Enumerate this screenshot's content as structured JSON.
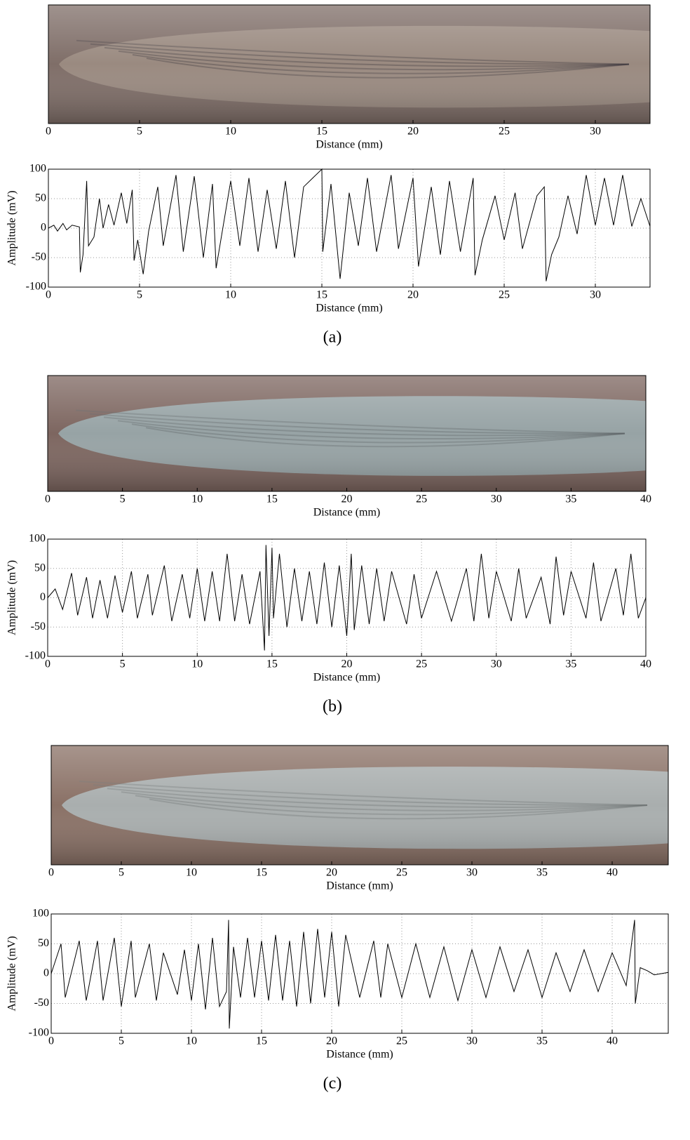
{
  "chart_data": [
    {
      "type": "image",
      "xlabel": "Distance (mm)",
      "xlim": [
        0,
        33
      ],
      "xticks": [
        0,
        5,
        10,
        15,
        20,
        25,
        30
      ],
      "colors": [
        "#7f6e68",
        "#9a8a80",
        "#3f3a3e"
      ]
    },
    {
      "type": "line",
      "xlabel": "Distance (mm)",
      "ylabel": "Amplitude (mV)",
      "caption": "(a)",
      "xlim": [
        0,
        33
      ],
      "ylim": [
        -100,
        100
      ],
      "xticks": [
        0,
        5,
        10,
        15,
        20,
        25,
        30
      ],
      "yticks": [
        -100,
        -50,
        0,
        50,
        100
      ],
      "grid": true,
      "color": "#000000",
      "x": [
        0,
        0.3,
        0.5,
        0.8,
        1.0,
        1.3,
        1.7,
        1.75,
        1.9,
        2.1,
        2.2,
        2.5,
        2.8,
        3.0,
        3.3,
        3.6,
        4.0,
        4.3,
        4.6,
        4.7,
        4.9,
        5.2,
        5.5,
        6.0,
        6.3,
        7.0,
        7.4,
        8.0,
        8.5,
        9.0,
        9.2,
        10,
        10.5,
        11,
        11.5,
        12,
        12.5,
        13,
        13.5,
        14,
        15,
        15.05,
        15.5,
        16,
        16.5,
        17,
        17.5,
        18,
        18.8,
        19.2,
        20,
        20.3,
        21,
        21.5,
        22,
        22.6,
        23.3,
        23.4,
        23.8,
        24.5,
        25,
        25.6,
        26,
        26.8,
        27.2,
        27.3,
        27.6,
        28,
        28.5,
        29,
        29.5,
        30,
        30.5,
        31,
        31.5,
        32,
        32.5,
        33
      ],
      "values": [
        0,
        5,
        -5,
        8,
        -3,
        5,
        2,
        -75,
        -45,
        80,
        -30,
        -15,
        50,
        0,
        40,
        5,
        60,
        8,
        65,
        -55,
        -20,
        -78,
        -5,
        70,
        -30,
        90,
        -40,
        88,
        -50,
        75,
        -68,
        80,
        -30,
        85,
        -40,
        65,
        -35,
        80,
        -50,
        70,
        100,
        -40,
        75,
        -86,
        60,
        -30,
        85,
        -40,
        90,
        -35,
        85,
        -65,
        70,
        -45,
        80,
        -40,
        85,
        -80,
        -20,
        55,
        -20,
        60,
        -35,
        55,
        70,
        -90,
        -45,
        -15,
        55,
        -10,
        90,
        5,
        85,
        5,
        90,
        3,
        50,
        3
      ]
    },
    {
      "type": "image",
      "xlabel": "Distance (mm)",
      "xlim": [
        0,
        40
      ],
      "xticks": [
        0,
        5,
        10,
        15,
        20,
        25,
        30,
        35,
        40
      ],
      "colors": [
        "#7d6660",
        "#97a3a5",
        "#5f6466"
      ]
    },
    {
      "type": "line",
      "xlabel": "Distance (mm)",
      "ylabel": "Amplitude (mV)",
      "caption": "(b)",
      "xlim": [
        0,
        40
      ],
      "ylim": [
        -100,
        100
      ],
      "xticks": [
        0,
        5,
        10,
        15,
        20,
        25,
        30,
        35,
        40
      ],
      "yticks": [
        -100,
        -50,
        0,
        50,
        100
      ],
      "grid": true,
      "color": "#000000",
      "x": [
        0,
        0.5,
        1,
        1.6,
        2,
        2.6,
        3,
        3.5,
        4,
        4.5,
        5,
        5.6,
        6,
        6.7,
        7,
        7.8,
        8.3,
        9,
        9.5,
        10,
        10.5,
        11,
        11.5,
        12,
        12.5,
        13,
        13.5,
        14.2,
        14.5,
        14.6,
        14.8,
        15,
        15.1,
        15.5,
        16,
        16.5,
        17,
        17.5,
        18,
        18.5,
        19,
        19.5,
        20,
        20.3,
        20.5,
        21,
        21.5,
        22,
        22.5,
        23,
        24,
        24.5,
        25,
        26,
        27,
        28,
        28.5,
        29,
        29.5,
        30,
        31,
        31.5,
        32,
        33,
        33.6,
        34,
        34.5,
        35,
        36,
        36.5,
        37,
        38,
        38.5,
        39,
        39.5,
        40
      ],
      "values": [
        0,
        15,
        -20,
        42,
        -30,
        35,
        -35,
        30,
        -35,
        38,
        -25,
        45,
        -35,
        40,
        -30,
        55,
        -40,
        40,
        -35,
        50,
        -40,
        45,
        -40,
        75,
        -40,
        40,
        -45,
        45,
        -90,
        90,
        -65,
        85,
        -35,
        75,
        -50,
        50,
        -40,
        45,
        -45,
        60,
        -50,
        55,
        -65,
        75,
        -55,
        55,
        -45,
        50,
        -40,
        45,
        -45,
        40,
        -35,
        45,
        -40,
        50,
        -40,
        75,
        -35,
        45,
        -40,
        50,
        -35,
        35,
        -45,
        70,
        -30,
        45,
        -35,
        60,
        -40,
        50,
        -30,
        75,
        -35,
        0
      ]
    },
    {
      "type": "image",
      "xlabel": "Distance (mm)",
      "xlim": [
        0,
        44
      ],
      "xticks": [
        0,
        5,
        10,
        15,
        20,
        25,
        30,
        35,
        40
      ],
      "colors": [
        "#8a7166",
        "#a9aeae",
        "#6d7274"
      ]
    },
    {
      "type": "line",
      "xlabel": "Distance (mm)",
      "ylabel": "Amplitude (mV)",
      "caption": "(c)",
      "xlim": [
        0,
        44
      ],
      "ylim": [
        -100,
        100
      ],
      "xticks": [
        0,
        5,
        10,
        15,
        20,
        25,
        30,
        35,
        40
      ],
      "yticks": [
        -100,
        -50,
        0,
        50,
        100
      ],
      "grid": true,
      "color": "#000000",
      "x": [
        0,
        0.7,
        1,
        2,
        2.5,
        3.3,
        3.7,
        4.5,
        5,
        5.7,
        6,
        7,
        7.5,
        8,
        9,
        9.5,
        10,
        10.5,
        11,
        11.5,
        12,
        12.5,
        12.65,
        12.7,
        13,
        13.5,
        14,
        14.5,
        15,
        15.5,
        16,
        16.5,
        17,
        17.5,
        18,
        18.5,
        19,
        19.5,
        20,
        20.5,
        21,
        22,
        23,
        23.5,
        24,
        25,
        26,
        27,
        28,
        29,
        30,
        31,
        32,
        33,
        34,
        35,
        36,
        37,
        38,
        39,
        40,
        41,
        41.6,
        41.65,
        42,
        42.5,
        43,
        44
      ],
      "values": [
        0,
        50,
        -40,
        55,
        -45,
        55,
        -45,
        60,
        -55,
        55,
        -40,
        50,
        -45,
        35,
        -35,
        40,
        -45,
        50,
        -60,
        60,
        -55,
        -30,
        90,
        -92,
        45,
        -40,
        60,
        -40,
        55,
        -45,
        65,
        -45,
        55,
        -55,
        70,
        -50,
        75,
        -40,
        70,
        -55,
        65,
        -40,
        55,
        -40,
        50,
        -40,
        50,
        -40,
        45,
        -45,
        40,
        -40,
        45,
        -30,
        40,
        -40,
        35,
        -30,
        40,
        -30,
        35,
        -20,
        90,
        -50,
        10,
        5,
        -2,
        2
      ]
    }
  ]
}
